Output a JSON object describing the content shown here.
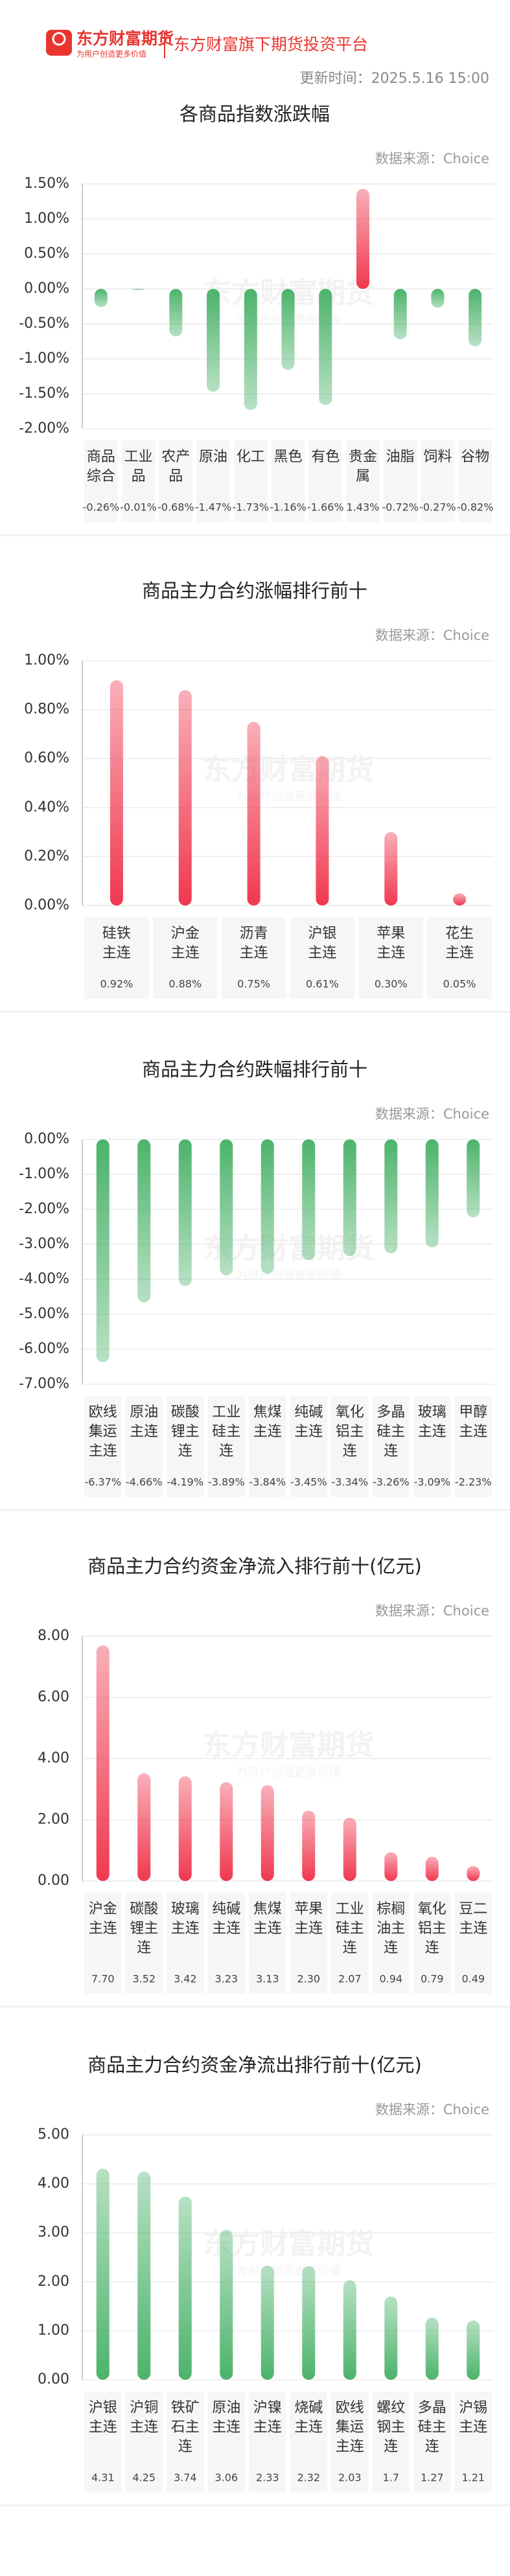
{
  "header": {
    "brand": "东方财富期货",
    "slogan": "为用户创造更多价值",
    "tagline": "东方财富旗下期货投资平台",
    "update_time": "更新时间：2025.5.16 15:00"
  },
  "chart_data": [
    {
      "type": "bar",
      "title": "各商品指数涨跌幅",
      "source": "数据来源：Choice",
      "categories": [
        "商品综合",
        "工业品",
        "农产品",
        "原油",
        "化工",
        "黑色",
        "有色",
        "贵金属",
        "油脂",
        "饲料",
        "谷物"
      ],
      "values": [
        -0.26,
        -0.01,
        -0.68,
        -1.47,
        -1.73,
        -1.16,
        -1.66,
        1.43,
        -0.72,
        -0.27,
        -0.82
      ],
      "value_labels": [
        "-0.26%",
        "-0.01%",
        "-0.68%",
        "-1.47%",
        "-1.73%",
        "-1.16%",
        "-1.66%",
        "1.43%",
        "-0.72%",
        "-0.27%",
        "-0.82%"
      ],
      "positive_color": "#f0384f",
      "negative_color": "#4cb36b",
      "ylim": [
        -2,
        1.5
      ],
      "yticks": [
        {
          "value": 1.5,
          "label": "1.50%"
        },
        {
          "value": 1,
          "label": "1.00%"
        },
        {
          "value": 0.5,
          "label": "0.50%"
        },
        {
          "value": 0,
          "label": "0.00%"
        },
        {
          "value": -0.5,
          "label": "-0.50%"
        },
        {
          "value": -1,
          "label": "-1.00%"
        },
        {
          "value": -1.5,
          "label": "-1.50%"
        },
        {
          "value": -2,
          "label": "-2.00%"
        }
      ],
      "grid": true
    },
    {
      "type": "bar",
      "title": "商品主力合约涨幅排行前十",
      "source": "数据来源：Choice",
      "categories": [
        "硅铁主连",
        "沪金主连",
        "沥青主连",
        "沪银主连",
        "苹果主连",
        "花生主连"
      ],
      "values": [
        0.92,
        0.88,
        0.75,
        0.61,
        0.3,
        0.05
      ],
      "value_labels": [
        "0.92%",
        "0.88%",
        "0.75%",
        "0.61%",
        "0.30%",
        "0.05%"
      ],
      "color": "#f0384f",
      "ylim": [
        0,
        1
      ],
      "yticks": [
        {
          "value": 0,
          "label": "0.00%"
        },
        {
          "value": 0.2,
          "label": "0.20%"
        },
        {
          "value": 0.4,
          "label": "0.40%"
        },
        {
          "value": 0.6,
          "label": "0.60%"
        },
        {
          "value": 0.8,
          "label": "0.80%"
        },
        {
          "value": 1,
          "label": "1.00%"
        }
      ],
      "grid": true
    },
    {
      "type": "bar",
      "title": "商品主力合约跌幅排行前十",
      "source": "数据来源：Choice",
      "categories": [
        "欧线集运主连",
        "原油主连",
        "碳酸锂主连",
        "工业硅主连",
        "焦煤主连",
        "纯碱主连",
        "氧化铝主连",
        "多晶硅主连",
        "玻璃主连",
        "甲醇主连"
      ],
      "values": [
        -6.37,
        -4.66,
        -4.19,
        -3.89,
        -3.84,
        -3.45,
        -3.34,
        -3.26,
        -3.09,
        -2.23
      ],
      "value_labels": [
        "-6.37%",
        "-4.66%",
        "-4.19%",
        "-3.89%",
        "-3.84%",
        "-3.45%",
        "-3.34%",
        "-3.26%",
        "-3.09%",
        "-2.23%"
      ],
      "color": "#4cb36b",
      "ylim": [
        -7,
        0
      ],
      "yticks": [
        {
          "value": 0,
          "label": "0.00%"
        },
        {
          "value": -1,
          "label": "-1.00%"
        },
        {
          "value": -2,
          "label": "-2.00%"
        },
        {
          "value": -3,
          "label": "-3.00%"
        },
        {
          "value": -4,
          "label": "-4.00%"
        },
        {
          "value": -5,
          "label": "-5.00%"
        },
        {
          "value": -6,
          "label": "-6.00%"
        },
        {
          "value": -7,
          "label": "-7.00%"
        }
      ],
      "grid": true
    },
    {
      "type": "bar",
      "title": "商品主力合约资金净流入排行前十(亿元)",
      "source": "数据来源：Choice",
      "categories": [
        "沪金主连",
        "碳酸锂主连",
        "玻璃主连",
        "纯碱主连",
        "焦煤主连",
        "苹果主连",
        "工业硅主连",
        "棕榈油主连",
        "氧化铝主连",
        "豆二主连"
      ],
      "values": [
        7.7,
        3.52,
        3.42,
        3.23,
        3.13,
        2.3,
        2.07,
        0.94,
        0.79,
        0.49
      ],
      "value_labels": [
        "7.70",
        "3.52",
        "3.42",
        "3.23",
        "3.13",
        "2.30",
        "2.07",
        "0.94",
        "0.79",
        "0.49"
      ],
      "color": "#f0384f",
      "ylim": [
        0,
        8
      ],
      "yticks": [
        {
          "value": 0,
          "label": "0.00"
        },
        {
          "value": 2,
          "label": "2.00"
        },
        {
          "value": 4,
          "label": "4.00"
        },
        {
          "value": 6,
          "label": "6.00"
        },
        {
          "value": 8,
          "label": "8.00"
        }
      ],
      "grid": true
    },
    {
      "type": "bar",
      "title": "商品主力合约资金净流出排行前十(亿元)",
      "source": "数据来源：Choice",
      "categories": [
        "沪银主连",
        "沪铜主连",
        "铁矿石主连",
        "原油主连",
        "沪镍主连",
        "烧碱主连",
        "欧线集运主连",
        "螺纹钢主连",
        "多晶硅主连",
        "沪锡主连"
      ],
      "values": [
        4.31,
        4.25,
        3.74,
        3.06,
        2.33,
        2.32,
        2.03,
        1.7,
        1.27,
        1.21
      ],
      "color": "#4cb36b",
      "ylim": [
        0,
        5
      ],
      "yticks": [
        {
          "value": 0,
          "label": "0.00"
        },
        {
          "value": 1,
          "label": "1.00"
        },
        {
          "value": 2,
          "label": "2.00"
        },
        {
          "value": 3,
          "label": "3.00"
        },
        {
          "value": 4,
          "label": "4.00"
        },
        {
          "value": 5,
          "label": "5.00"
        }
      ],
      "grid": true
    }
  ]
}
